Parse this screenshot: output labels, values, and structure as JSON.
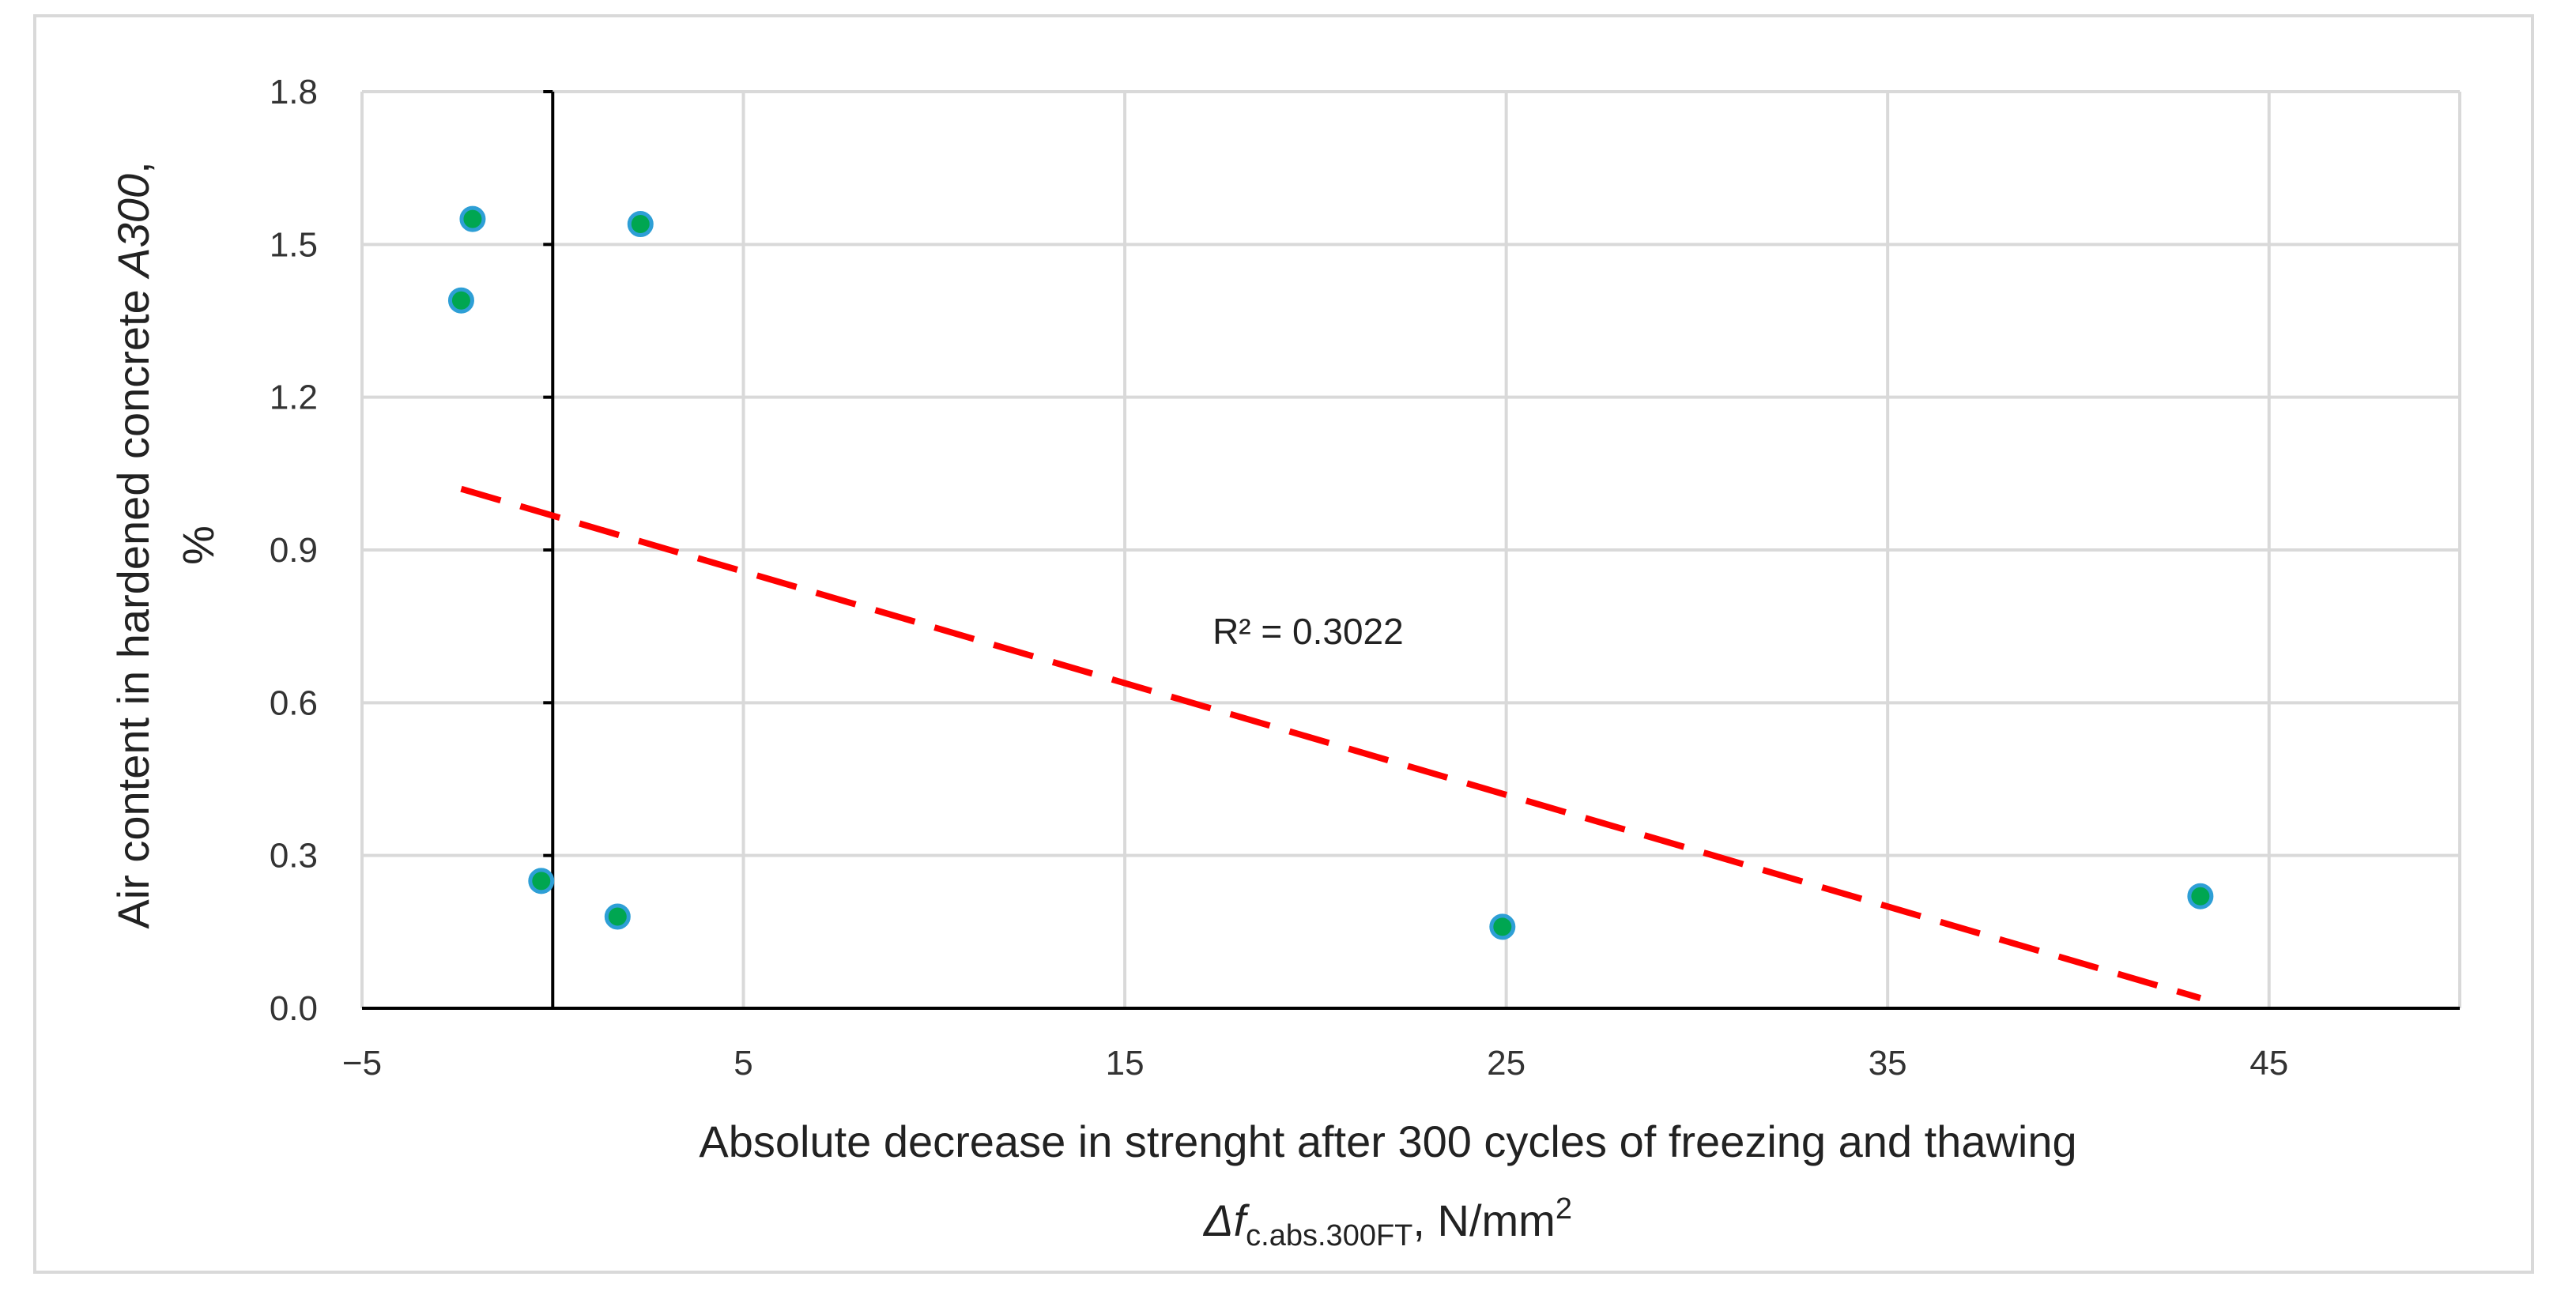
{
  "chart_data": {
    "type": "scatter",
    "title": "",
    "xlabel_line1": "Absolute decrease in strenght after 300 cycles of freezing and thawing",
    "xlabel_line2": {
      "symbol": "Δf",
      "subscript": "c.abs.300FT",
      "unit_prefix": ", N/mm",
      "superscript": "2"
    },
    "ylabel_line1": {
      "prefix": "Air content in hardened concrete ",
      "italic": "A300",
      "suffix": ","
    },
    "ylabel_line2": "%",
    "xlim": [
      -5,
      50
    ],
    "ylim": [
      0,
      1.8
    ],
    "x_ticks": [
      -5,
      5,
      15,
      25,
      35,
      45
    ],
    "x_tick_labels": [
      "−5",
      "5",
      "15",
      "25",
      "35",
      "45"
    ],
    "x_grid": [
      -5,
      5,
      15,
      25,
      35,
      45,
      50
    ],
    "y_ticks": [
      0,
      0.3,
      0.6,
      0.9,
      1.2,
      1.5,
      1.8
    ],
    "y_tick_labels": [
      "0.0",
      "0.3",
      "0.6",
      "0.9",
      "1.2",
      "1.5",
      "1.8"
    ],
    "grid": true,
    "y_axis_crosses_x_at": 0,
    "points": [
      {
        "x": -2.4,
        "y": 1.39
      },
      {
        "x": -2.1,
        "y": 1.55
      },
      {
        "x": 2.3,
        "y": 1.54
      },
      {
        "x": -0.3,
        "y": 0.25
      },
      {
        "x": 1.7,
        "y": 0.18
      },
      {
        "x": 24.9,
        "y": 0.16
      },
      {
        "x": 43.2,
        "y": 0.22
      }
    ],
    "trendline": {
      "type": "linear",
      "x_start": -2.4,
      "y_start": 1.02,
      "x_end": 43.2,
      "y_end": 0.02,
      "color": "#ff0000",
      "label": "R² = 0.3022",
      "label_x": 17.3,
      "label_y": 0.74
    },
    "colors": {
      "point_fill": "#00a651",
      "point_stroke": "#2e9fd6",
      "grid": "#d9d9d9",
      "axis": "#000000"
    }
  }
}
